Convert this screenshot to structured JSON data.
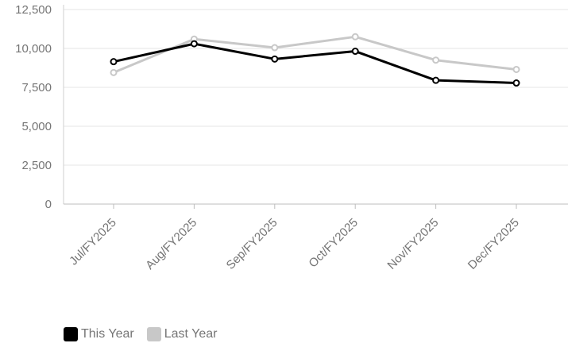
{
  "chart_data": {
    "type": "line",
    "categories": [
      "Jul/FY2025",
      "Aug/FY2025",
      "Sep/FY2025",
      "Oct/FY2025",
      "Nov/FY2025",
      "Dec/FY2025"
    ],
    "series": [
      {
        "name": "This Year",
        "color": "#000000",
        "values": [
          9150,
          10300,
          9320,
          9820,
          7950,
          7780
        ]
      },
      {
        "name": "Last Year",
        "color": "#c8c8c8",
        "values": [
          8450,
          10600,
          10050,
          10750,
          9250,
          8650
        ]
      }
    ],
    "ylim": [
      0,
      12500
    ],
    "yticks": [
      "0",
      "2,500",
      "5,000",
      "7,500",
      "10,000",
      "12,500"
    ],
    "ytick_values": [
      0,
      2500,
      5000,
      7500,
      10000,
      12500
    ],
    "grid": true,
    "legend_position": "bottom-left",
    "title": "",
    "xlabel": "",
    "ylabel": ""
  }
}
